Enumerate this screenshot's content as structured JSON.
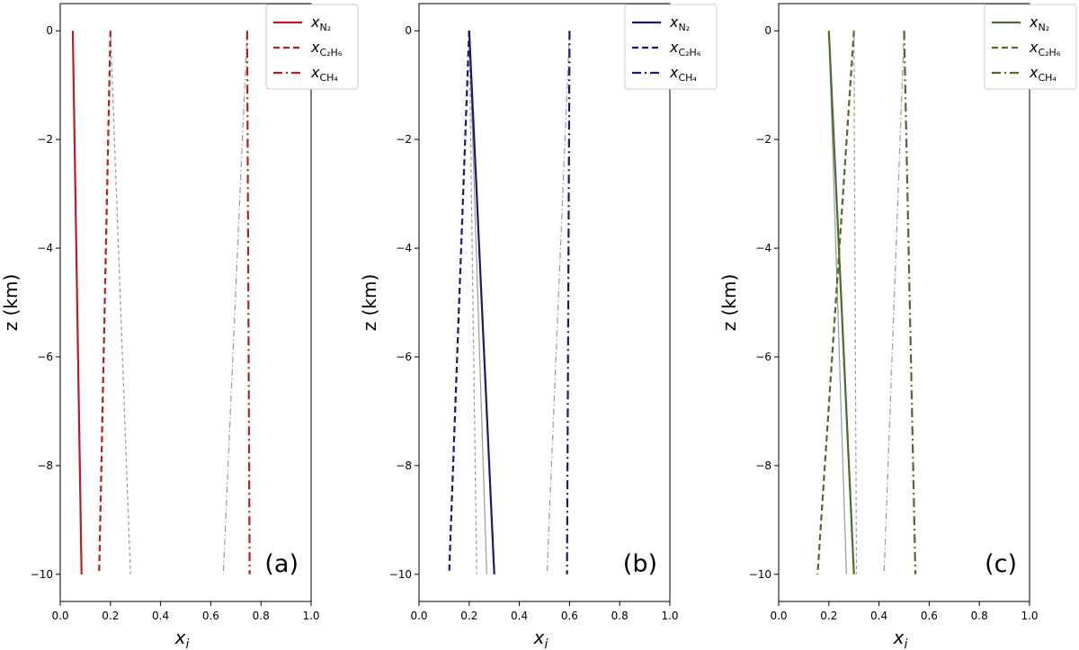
{
  "chart_data": [
    {
      "type": "line",
      "panel_label": "(a)",
      "color": "#b41f1f",
      "reference_color": "#999999",
      "xlabel_main": "x",
      "xlabel_sub": "i",
      "ylabel": "z (km)",
      "xlim": [
        0.0,
        1.0
      ],
      "ylim": [
        -10.5,
        0.5
      ],
      "xticks": [
        "0.0",
        "0.2",
        "0.4",
        "0.6",
        "0.8",
        "1.0"
      ],
      "yticks": [
        "0",
        "−2",
        "−4",
        "−6",
        "−8",
        "−10"
      ],
      "legend": [
        {
          "main": "x",
          "sub": "N₂",
          "style": "solid"
        },
        {
          "main": "x",
          "sub": "C₂H₆",
          "style": "dashed"
        },
        {
          "main": "x",
          "sub": "CH₄",
          "style": "dashdot"
        }
      ],
      "series": [
        {
          "name": "x_N2",
          "style": "solid",
          "z": [
            0,
            -10
          ],
          "x": [
            0.05,
            0.085
          ]
        },
        {
          "name": "x_C2H6",
          "style": "dashed",
          "z": [
            0,
            -10
          ],
          "x": [
            0.2,
            0.155
          ]
        },
        {
          "name": "x_CH4",
          "style": "dashdot",
          "z": [
            0,
            -10
          ],
          "x": [
            0.745,
            0.755
          ]
        }
      ],
      "reference_series": [
        {
          "style": "dashed",
          "z": [
            0,
            -10
          ],
          "x": [
            0.2,
            0.28
          ]
        },
        {
          "style": "dashdot",
          "z": [
            0,
            -10
          ],
          "x": [
            0.745,
            0.65
          ]
        }
      ]
    },
    {
      "type": "line",
      "panel_label": "(b)",
      "color": "#1a1a6e",
      "reference_color": "#999999",
      "xlabel_main": "x",
      "xlabel_sub": "i",
      "ylabel": "z (km)",
      "xlim": [
        0.0,
        1.0
      ],
      "ylim": [
        -10.5,
        0.5
      ],
      "xticks": [
        "0.0",
        "0.2",
        "0.4",
        "0.6",
        "0.8",
        "1.0"
      ],
      "yticks": [
        "0",
        "−2",
        "−4",
        "−6",
        "−8",
        "−10"
      ],
      "legend": [
        {
          "main": "x",
          "sub": "N₂",
          "style": "solid"
        },
        {
          "main": "x",
          "sub": "C₂H₆",
          "style": "dashed"
        },
        {
          "main": "x",
          "sub": "CH₄",
          "style": "dashdot"
        }
      ],
      "series": [
        {
          "name": "x_N2",
          "style": "solid",
          "z": [
            0,
            -10
          ],
          "x": [
            0.2,
            0.3
          ]
        },
        {
          "name": "x_C2H6",
          "style": "dashed",
          "z": [
            0,
            -10
          ],
          "x": [
            0.2,
            0.12
          ]
        },
        {
          "name": "x_CH4",
          "style": "dashdot",
          "z": [
            0,
            -10
          ],
          "x": [
            0.6,
            0.59
          ]
        }
      ],
      "reference_series": [
        {
          "style": "solid",
          "z": [
            0,
            -10
          ],
          "x": [
            0.2,
            0.27
          ]
        },
        {
          "style": "dashed",
          "z": [
            0,
            -10
          ],
          "x": [
            0.2,
            0.23
          ]
        },
        {
          "style": "dashdot",
          "z": [
            0,
            -10
          ],
          "x": [
            0.6,
            0.51
          ]
        }
      ]
    },
    {
      "type": "line",
      "panel_label": "(c)",
      "color": "#4d6b2a",
      "reference_color": "#999999",
      "xlabel_main": "x",
      "xlabel_sub": "i",
      "ylabel": "z (km)",
      "xlim": [
        0.0,
        1.0
      ],
      "ylim": [
        -10.5,
        0.5
      ],
      "xticks": [
        "0.0",
        "0.2",
        "0.4",
        "0.6",
        "0.8",
        "1.0"
      ],
      "yticks": [
        "0",
        "−2",
        "−4",
        "−6",
        "−8",
        "−10"
      ],
      "legend": [
        {
          "main": "x",
          "sub": "N₂",
          "style": "solid"
        },
        {
          "main": "x",
          "sub": "C₂H₆",
          "style": "dashed"
        },
        {
          "main": "x",
          "sub": "CH₄",
          "style": "dashdot"
        }
      ],
      "series": [
        {
          "name": "x_N2",
          "style": "solid",
          "z": [
            0,
            -10
          ],
          "x": [
            0.2,
            0.3
          ]
        },
        {
          "name": "x_C2H6",
          "style": "dashed",
          "z": [
            0,
            -10
          ],
          "x": [
            0.3,
            0.155
          ]
        },
        {
          "name": "x_CH4",
          "style": "dashdot",
          "z": [
            0,
            -10
          ],
          "x": [
            0.5,
            0.545
          ]
        }
      ],
      "reference_series": [
        {
          "style": "solid",
          "z": [
            0,
            -10
          ],
          "x": [
            0.2,
            0.27
          ]
        },
        {
          "style": "dashed",
          "z": [
            0,
            -10
          ],
          "x": [
            0.3,
            0.31
          ]
        },
        {
          "style": "dashdot",
          "z": [
            0,
            -10
          ],
          "x": [
            0.5,
            0.42
          ]
        }
      ]
    }
  ]
}
